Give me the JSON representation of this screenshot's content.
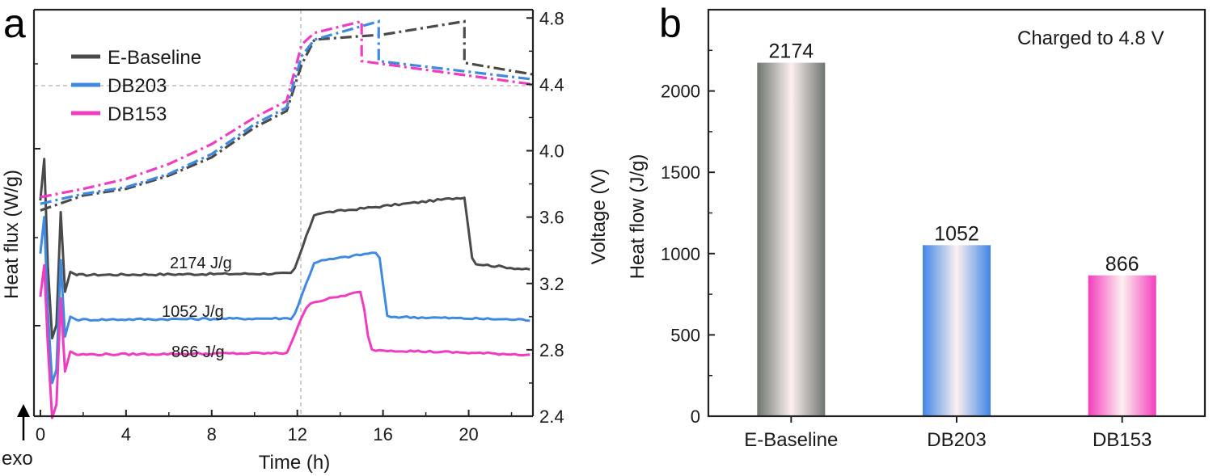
{
  "chart_data": [
    {
      "panel": "a",
      "type": "line",
      "xlabel": "Time (h)",
      "ylabel_left": "Heat flux (W/g)",
      "ylabel_right": "Voltage (V)",
      "exo_label": "exo",
      "xlim": [
        -0.3,
        23
      ],
      "x_ticks": [
        "0",
        "4",
        "8",
        "12",
        "16",
        "20"
      ],
      "right_ylim": [
        2.4,
        4.85
      ],
      "right_ticks": [
        "2.4",
        "2.8",
        "3.2",
        "3.6",
        "4.0",
        "4.4",
        "4.8"
      ],
      "reference_lines": {
        "time_h": 12,
        "voltage_V": 4.4
      },
      "legend_position": "top-left",
      "series": [
        {
          "name": "E-Baseline",
          "color": "#4a4a4a",
          "voltage": [
            [
              0,
              3.64
            ],
            [
              2,
              3.73
            ],
            [
              4,
              3.77
            ],
            [
              6,
              3.85
            ],
            [
              8,
              3.96
            ],
            [
              10,
              4.14
            ],
            [
              11.5,
              4.24
            ],
            [
              12.2,
              4.52
            ],
            [
              12.8,
              4.67
            ],
            [
              16,
              4.7
            ],
            [
              19.8,
              4.78
            ],
            [
              19.8,
              4.53
            ],
            [
              23,
              4.46
            ]
          ],
          "heat_flux_level": [
            [
              0,
              3.25
            ],
            [
              11.8,
              3.26
            ],
            [
              12.8,
              3.62
            ],
            [
              19.8,
              3.72
            ],
            [
              20.2,
              3.32
            ],
            [
              23,
              3.28
            ]
          ],
          "annotation": "2174 J/g"
        },
        {
          "name": "DB203",
          "color": "#3f8ae0",
          "voltage": [
            [
              0,
              3.68
            ],
            [
              2,
              3.74
            ],
            [
              4,
              3.78
            ],
            [
              6,
              3.86
            ],
            [
              8,
              3.98
            ],
            [
              10,
              4.16
            ],
            [
              11.5,
              4.26
            ],
            [
              12.2,
              4.57
            ],
            [
              12.8,
              4.67
            ],
            [
              15.8,
              4.78
            ],
            [
              15.8,
              4.54
            ],
            [
              23,
              4.43
            ]
          ],
          "heat_flux_level": [
            [
              0,
              2.98
            ],
            [
              11.8,
              2.99
            ],
            [
              12.8,
              3.33
            ],
            [
              15.8,
              3.39
            ],
            [
              16.2,
              3.0
            ],
            [
              23,
              2.98
            ]
          ],
          "annotation": "1052 J/g"
        },
        {
          "name": "DB153",
          "color": "#f03cc0",
          "voltage": [
            [
              0,
              3.72
            ],
            [
              2,
              3.77
            ],
            [
              4,
              3.83
            ],
            [
              6,
              3.92
            ],
            [
              8,
              4.04
            ],
            [
              10,
              4.2
            ],
            [
              11.5,
              4.3
            ],
            [
              12.2,
              4.64
            ],
            [
              12.8,
              4.71
            ],
            [
              15.0,
              4.78
            ],
            [
              15.0,
              4.54
            ],
            [
              23,
              4.4
            ]
          ],
          "heat_flux_level": [
            [
              0,
              2.77
            ],
            [
              11.5,
              2.78
            ],
            [
              12.5,
              3.08
            ],
            [
              15.0,
              3.15
            ],
            [
              15.4,
              2.8
            ],
            [
              23,
              2.77
            ]
          ],
          "annotation": "866 J/g"
        }
      ]
    },
    {
      "panel": "b",
      "type": "bar",
      "ylabel": "Heat flow (J/g)",
      "annotation": "Charged to 4.8 V",
      "categories": [
        "E-Baseline",
        "DB203",
        "DB153"
      ],
      "values": [
        2174,
        1052,
        866
      ],
      "value_labels": [
        "2174",
        "1052",
        "866"
      ],
      "colors": [
        "#6e7670",
        "#3f86e6",
        "#f23ebc"
      ],
      "ylim": [
        0,
        2500
      ],
      "y_ticks": [
        "0",
        "500",
        "1000",
        "1500",
        "2000"
      ]
    }
  ]
}
